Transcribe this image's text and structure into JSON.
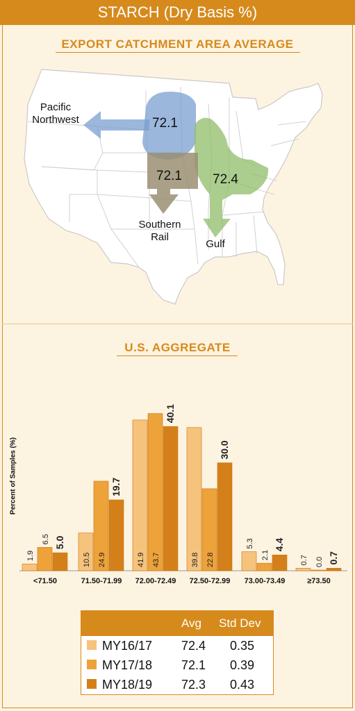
{
  "header": {
    "title": "STARCH (Dry Basis %)"
  },
  "map_section": {
    "title": "EXPORT CATCHMENT AREA AVERAGE",
    "regions": [
      {
        "name": "Pacific Northwest",
        "value": "72.1",
        "color": "#7a9fd0"
      },
      {
        "name": "Southern Rail",
        "value": "72.1",
        "color": "#9a8f72"
      },
      {
        "name": "Gulf",
        "value": "72.4",
        "color": "#8fbe6a"
      }
    ],
    "labels": {
      "pnw_line1": "Pacific",
      "pnw_line2": "Northwest",
      "sr_line1": "Southern",
      "sr_line2": "Rail",
      "gulf": "Gulf"
    }
  },
  "aggregate_section": {
    "title": "U.S. AGGREGATE"
  },
  "chart_data": {
    "type": "bar",
    "ylabel": "Percent of Samples (%)",
    "categories": [
      "<71.50",
      "71.50-71.99",
      "72.00-72.49",
      "72.50-72.99",
      "73.00-73.49",
      "≥73.50"
    ],
    "series": [
      {
        "name": "MY16/17",
        "color": "#f6c37c",
        "values": [
          1.9,
          10.5,
          41.9,
          39.8,
          5.3,
          0.7
        ]
      },
      {
        "name": "MY17/18",
        "color": "#eda33a",
        "values": [
          6.5,
          24.9,
          43.7,
          22.8,
          2.1,
          0.0
        ]
      },
      {
        "name": "MY18/19",
        "color": "#d4801a",
        "values": [
          5.0,
          19.7,
          40.1,
          30.0,
          4.4,
          0.7
        ]
      }
    ],
    "value_labels": [
      [
        "1.9",
        "6.5",
        "5.0"
      ],
      [
        "10.5",
        "24.9",
        "19.7"
      ],
      [
        "41.9",
        "43.7",
        "40.1"
      ],
      [
        "39.8",
        "22.8",
        "30.0"
      ],
      [
        "5.3",
        "2.1",
        "4.4"
      ],
      [
        "0.7",
        "0.0",
        "0.7"
      ]
    ],
    "ylim": [
      0,
      44
    ]
  },
  "stats_table": {
    "headers": [
      "Avg",
      "Std Dev"
    ],
    "rows": [
      {
        "label": "MY16/17",
        "avg": "72.4",
        "std": "0.35",
        "color": "#f6c37c"
      },
      {
        "label": "MY17/18",
        "avg": "72.1",
        "std": "0.39",
        "color": "#eda33a"
      },
      {
        "label": "MY18/19",
        "avg": "72.3",
        "std": "0.43",
        "color": "#d4801a"
      }
    ]
  }
}
